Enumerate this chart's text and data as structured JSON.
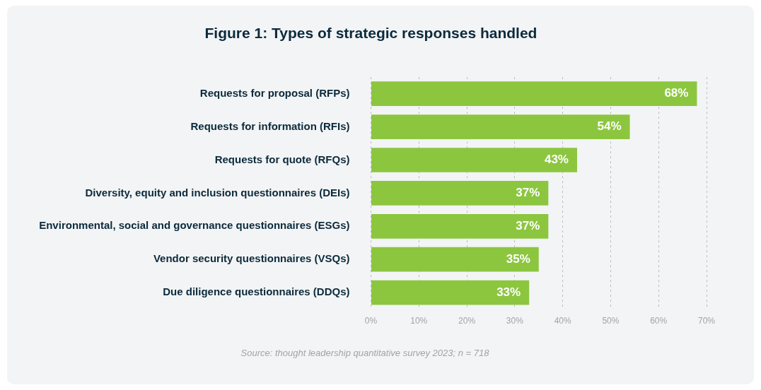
{
  "chart_data": {
    "type": "bar",
    "orientation": "horizontal",
    "title": "Figure 1: Types of strategic responses handled",
    "categories": [
      "Requests for proposal (RFPs)",
      "Requests for information (RFIs)",
      "Requests for quote (RFQs)",
      "Diversity, equity and inclusion questionnaires (DEIs)",
      "Environmental, social and governance questionnaires (ESGs)",
      "Vendor security questionnaires (VSQs)",
      "Due diligence questionnaires (DDQs)"
    ],
    "values": [
      68,
      54,
      43,
      37,
      37,
      35,
      33
    ],
    "value_labels": [
      "68%",
      "54%",
      "43%",
      "37%",
      "37%",
      "35%",
      "33%"
    ],
    "color": "#8cc63f",
    "xlim": [
      0,
      70
    ],
    "xticks": [
      {
        "value": 0,
        "label": "0%"
      },
      {
        "value": 10,
        "label": "10%"
      },
      {
        "value": 20,
        "label": "20%"
      },
      {
        "value": 30,
        "label": "30%"
      },
      {
        "value": 40,
        "label": "40%"
      },
      {
        "value": 50,
        "label": "50%"
      },
      {
        "value": 60,
        "label": "60%"
      },
      {
        "value": 70,
        "label": "70%"
      }
    ],
    "grid": "x",
    "annotations": [
      "Source: thought leadership quantitative survey 2023; n = 718"
    ]
  }
}
